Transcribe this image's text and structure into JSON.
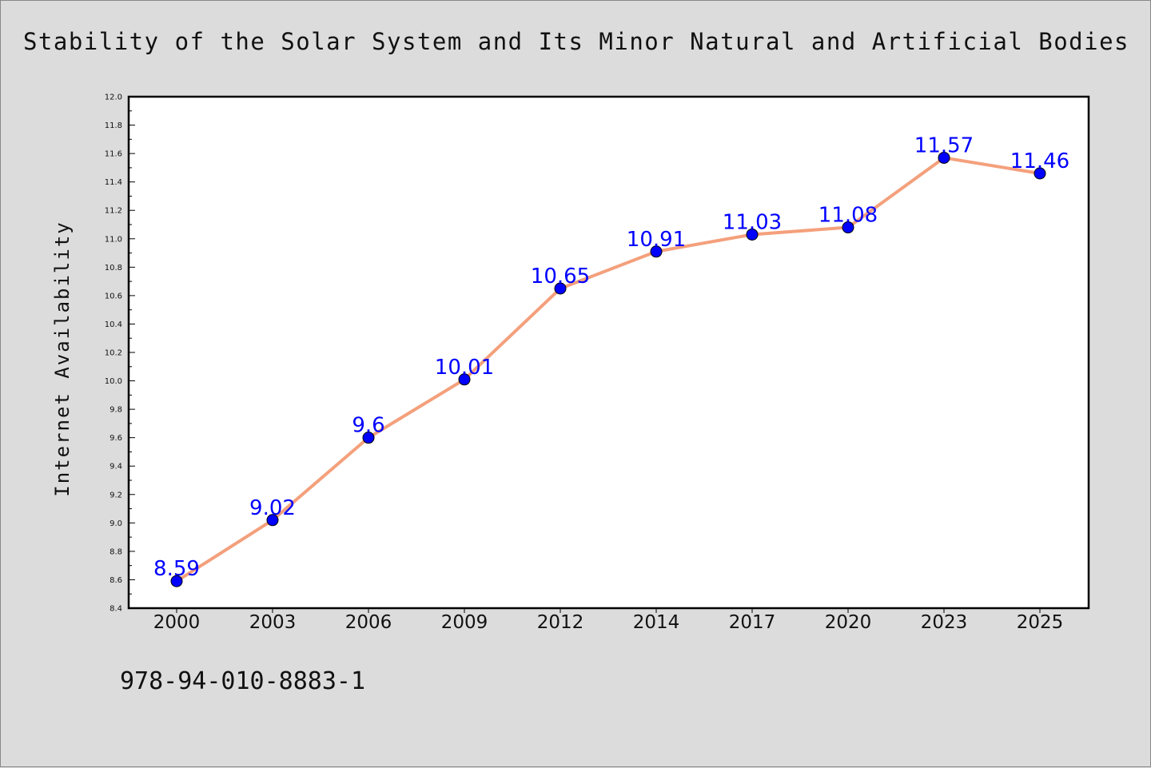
{
  "chart_data": {
    "type": "line",
    "title": "Stability of the Solar System and Its Minor Natural and Artificial Bodies",
    "xlabel": "",
    "ylabel": "Internet Availability",
    "categories": [
      "2000",
      "2003",
      "2006",
      "2009",
      "2012",
      "2014",
      "2017",
      "2020",
      "2023",
      "2025"
    ],
    "series": [
      {
        "values": [
          8.59,
          9.02,
          9.6,
          10.01,
          10.65,
          10.91,
          11.03,
          11.08,
          11.57,
          11.46
        ]
      }
    ],
    "data_labels": [
      "8.59",
      "9.02",
      "9.6",
      "10.01",
      "10.65",
      "10.91",
      "11.03",
      "11.08",
      "11.57",
      "11.46"
    ],
    "ylim": [
      8.4,
      12.0
    ],
    "yticks": [
      8.4,
      8.6,
      8.8,
      9.0,
      9.2,
      9.4,
      9.6,
      9.8,
      10.0,
      10.2,
      10.4,
      10.6,
      10.8,
      11.0,
      11.2,
      11.4,
      11.6,
      11.8,
      12.0
    ],
    "ytick_labels": [
      "8.4",
      "8.6",
      "8.8",
      "9.0",
      "9.2",
      "9.4",
      "9.6",
      "9.8",
      "10.0",
      "10.2",
      "10.4",
      "10.6",
      "10.8",
      "11.0",
      "11.2",
      "11.4",
      "11.6",
      "11.8",
      "12.0"
    ],
    "grid": false,
    "legend": "none",
    "colors": {
      "line": "#f4a07c",
      "marker": "#0000ff",
      "data_label": "#0000ff",
      "plot_background": "#ffffff",
      "page_background": "#dcdcdc"
    }
  },
  "footer": {
    "identifier": "978-94-010-8883-1"
  }
}
